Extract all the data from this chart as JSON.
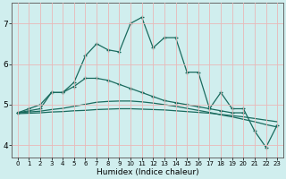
{
  "xlabel": "Humidex (Indice chaleur)",
  "x": [
    0,
    1,
    2,
    3,
    4,
    5,
    6,
    7,
    8,
    9,
    10,
    11,
    12,
    13,
    14,
    15,
    16,
    17,
    18,
    19,
    20,
    21,
    22,
    23
  ],
  "line1": [
    4.8,
    4.85,
    4.9,
    5.3,
    5.3,
    5.55,
    6.2,
    6.5,
    6.35,
    6.3,
    7.0,
    7.15,
    6.4,
    6.65,
    6.65,
    5.8,
    5.8,
    4.9,
    5.3,
    4.9,
    4.9,
    4.35,
    3.95,
    4.5
  ],
  "line2": [
    4.8,
    4.9,
    5.0,
    5.3,
    5.3,
    5.45,
    5.65,
    5.65,
    5.6,
    5.5,
    5.4,
    5.3,
    5.2,
    5.1,
    5.05,
    5.0,
    4.95,
    4.9,
    4.85,
    4.8,
    4.8,
    null,
    null,
    null
  ],
  "line3": [
    4.8,
    4.82,
    4.84,
    4.88,
    4.91,
    4.96,
    5.01,
    5.06,
    5.08,
    5.09,
    5.09,
    5.07,
    5.04,
    5.0,
    4.96,
    4.91,
    4.86,
    4.81,
    4.75,
    4.7,
    4.64,
    4.58,
    4.51,
    4.45
  ],
  "line4": [
    4.78,
    4.79,
    4.8,
    4.82,
    4.83,
    4.85,
    4.86,
    4.88,
    4.89,
    4.9,
    4.9,
    4.89,
    4.88,
    4.87,
    4.85,
    4.83,
    4.81,
    4.79,
    4.76,
    4.73,
    4.7,
    4.66,
    4.62,
    4.58
  ],
  "color": "#1a6b5e",
  "bg_color": "#d0eeee",
  "grid_color": "#e8b8b8",
  "ylim": [
    3.7,
    7.5
  ],
  "yticks": [
    4,
    5,
    6,
    7
  ],
  "figsize": [
    3.2,
    2.0
  ],
  "dpi": 100
}
